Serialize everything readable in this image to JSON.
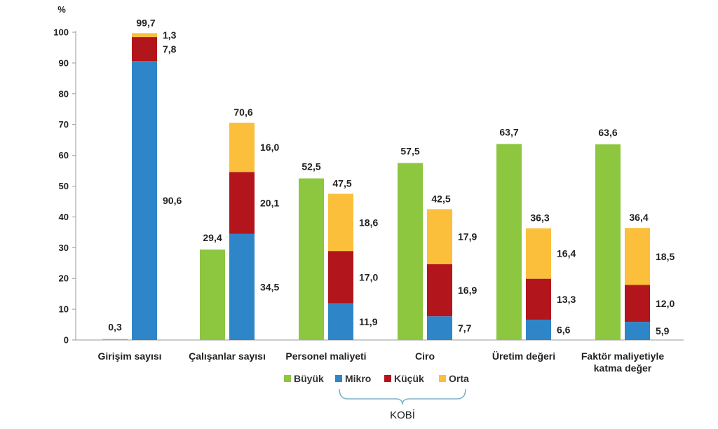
{
  "chart_data": {
    "type": "bar",
    "ylabel": "%",
    "ylim": [
      0,
      100
    ],
    "yticks": [
      0,
      10,
      20,
      30,
      40,
      50,
      60,
      70,
      80,
      90,
      100
    ],
    "categories": [
      [
        "Girişim sayısı"
      ],
      [
        "Çalışanlar sayısı"
      ],
      [
        "Personel maliyeti"
      ],
      [
        "Ciro"
      ],
      [
        "Üretim değeri"
      ],
      [
        "Faktör maliyetiyle",
        "katma değer"
      ]
    ],
    "series": [
      {
        "name": "Büyük",
        "color": "#8dc63f",
        "values": [
          0.3,
          29.4,
          52.5,
          57.5,
          63.7,
          63.6
        ]
      },
      {
        "name": "Mikro",
        "color": "#2e86c9",
        "values": [
          90.6,
          34.5,
          11.9,
          7.7,
          6.6,
          5.9
        ]
      },
      {
        "name": "Küçük",
        "color": "#b3151c",
        "values": [
          7.8,
          20.1,
          17.0,
          16.9,
          13.3,
          12.0
        ]
      },
      {
        "name": "Orta",
        "color": "#fbbf3b",
        "values": [
          1.3,
          16.0,
          18.6,
          17.9,
          16.4,
          18.5
        ]
      }
    ],
    "value_labels": {
      "Büyük": [
        "0,3",
        "29,4",
        "52,5",
        "57,5",
        "63,7",
        "63,6"
      ],
      "Mikro": [
        "90,6",
        "34,5",
        "11,9",
        "7,7",
        "6,6",
        "5,9"
      ],
      "Küçük": [
        "7,8",
        "20,1",
        "17,0",
        "16,9",
        "13,3",
        "12,0"
      ],
      "Orta": [
        "1,3",
        "16,0",
        "18,6",
        "17,9",
        "16,4",
        "18,5"
      ]
    },
    "kobi_totals": [
      "99,7",
      "70,6",
      "47,5",
      "42,5",
      "36,3",
      "36,4"
    ],
    "kobi_totals_values": [
      99.7,
      70.6,
      47.5,
      42.5,
      36.3,
      36.4
    ],
    "kobi_label": "KOBİ",
    "kobi_series": [
      "Mikro",
      "Küçük",
      "Orta"
    ],
    "legend_position": "bottom",
    "grid": false
  }
}
